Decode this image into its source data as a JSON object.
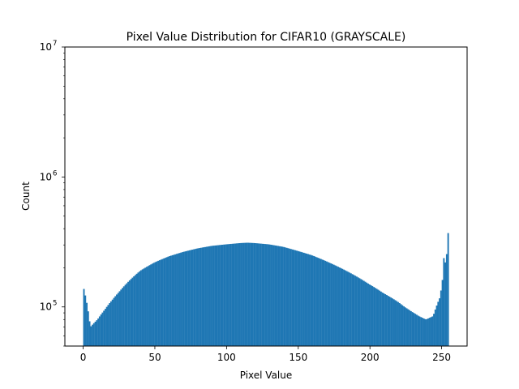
{
  "chart_data": {
    "type": "bar",
    "title": "Pixel Value Distribution for CIFAR10 (GRAYSCALE)",
    "xlabel": "Pixel Value",
    "ylabel": "Count",
    "yscale": "log",
    "xlim": [
      -12.75,
      267.75
    ],
    "ylim": [
      50000,
      10000000
    ],
    "x_ticks": [
      0,
      50,
      100,
      150,
      200,
      250
    ],
    "y_ticks": [
      {
        "value": 100000,
        "base": "10",
        "exp": "5"
      },
      {
        "value": 1000000,
        "base": "10",
        "exp": "6"
      },
      {
        "value": 10000000,
        "base": "10",
        "exp": "7"
      }
    ],
    "grid": false,
    "legend": "none",
    "bar_color": "#1f77b4",
    "bins": 256,
    "bin_range": [
      0,
      255
    ],
    "x": [
      0,
      5,
      10,
      15,
      20,
      25,
      30,
      40,
      50,
      60,
      70,
      80,
      90,
      100,
      110,
      115,
      120,
      130,
      140,
      150,
      160,
      170,
      180,
      190,
      200,
      210,
      220,
      225,
      230,
      235,
      240,
      245,
      250,
      252,
      253,
      254,
      255
    ],
    "values": [
      145000,
      70000,
      80000,
      95000,
      112000,
      130000,
      150000,
      190000,
      220000,
      245000,
      265000,
      282000,
      295000,
      303000,
      310000,
      312000,
      310000,
      303000,
      290000,
      270000,
      250000,
      225000,
      200000,
      175000,
      150000,
      128000,
      110000,
      100000,
      92000,
      85000,
      80000,
      85000,
      120000,
      175000,
      300000,
      140000,
      370000
    ]
  }
}
